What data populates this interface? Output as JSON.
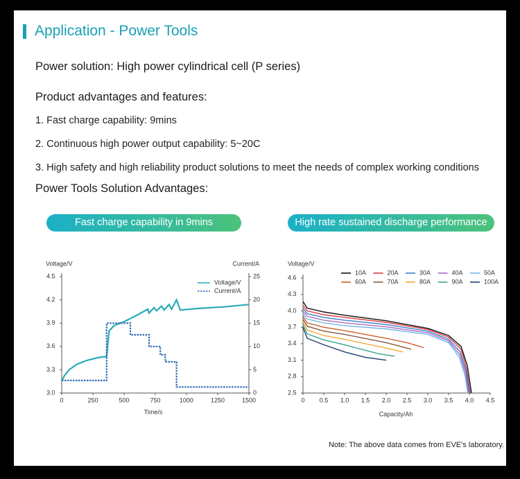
{
  "header": {
    "title": "Application - Power Tools"
  },
  "solution": "Power solution: High power cylindrical cell (P series)",
  "advantages_heading": "Product advantages and features:",
  "advantages": [
    "1. Fast charge capability: 9mins",
    "2. Continuous high power output capability: 5~20C",
    "3. High safety and high reliability product solutions to meet the needs of complex working conditions"
  ],
  "solution_heading": "Power Tools Solution Advantages:",
  "buttons": [
    "Fast charge capability in 9mins",
    "High rate sustained discharge performance"
  ],
  "note": "Note: The above data comes from EVE's laboratory.",
  "chart_data": [
    {
      "type": "line",
      "xlabel": "Time/s",
      "ylabel": "Voltage/V",
      "y2label": "Current/A",
      "xlim": [
        0,
        1500
      ],
      "xticks": [
        0,
        250,
        500,
        750,
        1000,
        1250,
        1500
      ],
      "ylim": [
        3.0,
        4.5
      ],
      "yticks": [
        {
          "value": 3.0,
          "label": "3.0"
        },
        3.3,
        3.6,
        3.9,
        4.2,
        4.5
      ],
      "y2lim": [
        0,
        25
      ],
      "y2ticks": [
        0,
        5,
        10,
        15,
        20,
        25
      ],
      "legend": "upper right",
      "series": [
        {
          "name": "Voltage/V",
          "color": "#2aaab8",
          "style": "solid",
          "x": [
            0,
            20,
            60,
            120,
            200,
            300,
            360,
            365,
            380,
            420,
            500,
            600,
            690,
            700,
            740,
            760,
            800,
            820,
            860,
            880,
            920,
            950,
            1100,
            1300,
            1500
          ],
          "values": [
            3.15,
            3.22,
            3.3,
            3.37,
            3.42,
            3.46,
            3.47,
            3.55,
            3.8,
            3.87,
            3.92,
            4.0,
            4.08,
            4.03,
            4.1,
            4.06,
            4.12,
            4.07,
            4.14,
            4.08,
            4.2,
            4.07,
            4.09,
            4.11,
            4.14
          ]
        },
        {
          "name": "Current/A",
          "color": "#2e6db5",
          "style": "dashed",
          "axis": "y2",
          "x": [
            0,
            360,
            360,
            550,
            550,
            700,
            700,
            790,
            790,
            830,
            830,
            920,
            920,
            1500
          ],
          "values": [
            2.7,
            2.7,
            15,
            15,
            12.5,
            12.5,
            10,
            10,
            8.2,
            8.2,
            6.7,
            6.7,
            1.3,
            1.3
          ]
        }
      ]
    },
    {
      "type": "line",
      "xlabel": "Capacity/Ah",
      "ylabel": "Voltage/V",
      "xlim": [
        0,
        4.5
      ],
      "xticks": [
        0,
        0.5,
        {
          "value": 1.0,
          "label": "1.0"
        },
        1.5,
        {
          "value": 2.0,
          "label": "2.0"
        },
        2.5,
        {
          "value": 3.0,
          "label": "3.0"
        },
        3.5,
        {
          "value": 4.0,
          "label": "4.0"
        },
        4.5
      ],
      "ylim": [
        2.5,
        4.6
      ],
      "yticks": [
        2.5,
        2.8,
        3.1,
        3.4,
        3.7,
        {
          "value": 4.0,
          "label": "4.0"
        },
        4.3,
        4.6
      ],
      "legend": "top",
      "series": [
        {
          "name": "10A",
          "color": "#111111",
          "x": [
            0,
            0.1,
            0.5,
            1.0,
            2.0,
            3.0,
            3.5,
            3.8,
            3.95,
            4.05
          ],
          "values": [
            4.17,
            4.05,
            3.98,
            3.92,
            3.82,
            3.68,
            3.55,
            3.35,
            3.0,
            2.5
          ]
        },
        {
          "name": "20A",
          "color": "#e03a3a",
          "x": [
            0,
            0.1,
            0.5,
            1.0,
            2.0,
            3.0,
            3.5,
            3.8,
            3.93,
            4.02
          ],
          "values": [
            4.1,
            4.0,
            3.93,
            3.88,
            3.79,
            3.66,
            3.52,
            3.3,
            2.95,
            2.5
          ]
        },
        {
          "name": "30A",
          "color": "#3a7cc9",
          "x": [
            0,
            0.1,
            0.5,
            1.0,
            2.0,
            3.0,
            3.5,
            3.78,
            3.92,
            4.0
          ],
          "values": [
            4.05,
            3.95,
            3.88,
            3.83,
            3.75,
            3.63,
            3.48,
            3.25,
            2.9,
            2.5
          ]
        },
        {
          "name": "40A",
          "color": "#a86bc4",
          "x": [
            0,
            0.1,
            0.5,
            1.0,
            2.0,
            3.0,
            3.5,
            3.77,
            3.91,
            3.98
          ],
          "values": [
            4.0,
            3.9,
            3.83,
            3.78,
            3.71,
            3.6,
            3.45,
            3.2,
            2.85,
            2.5
          ]
        },
        {
          "name": "50A",
          "color": "#6fb8e6",
          "x": [
            0,
            0.1,
            0.5,
            1.0,
            2.0,
            3.0,
            3.5,
            3.76,
            3.9,
            3.96
          ],
          "values": [
            3.95,
            3.85,
            3.78,
            3.73,
            3.67,
            3.57,
            3.42,
            3.15,
            2.8,
            2.5
          ]
        },
        {
          "name": "60A",
          "color": "#c9602a",
          "x": [
            0,
            0.1,
            0.5,
            1.0,
            2.0,
            2.5,
            2.9
          ],
          "values": [
            3.9,
            3.78,
            3.7,
            3.64,
            3.5,
            3.42,
            3.33
          ]
        },
        {
          "name": "70A",
          "color": "#8a5a3c",
          "x": [
            0,
            0.1,
            0.5,
            1.0,
            2.0,
            2.6
          ],
          "values": [
            3.85,
            3.72,
            3.63,
            3.57,
            3.42,
            3.3
          ]
        },
        {
          "name": "80A",
          "color": "#f2a933",
          "x": [
            0,
            0.1,
            0.5,
            1.0,
            2.0,
            2.4
          ],
          "values": [
            3.8,
            3.65,
            3.55,
            3.48,
            3.32,
            3.25
          ]
        },
        {
          "name": "90A",
          "color": "#3aa68a",
          "x": [
            0,
            0.1,
            0.5,
            1.0,
            1.8,
            2.2
          ],
          "values": [
            3.75,
            3.58,
            3.47,
            3.38,
            3.22,
            3.17
          ]
        },
        {
          "name": "100A",
          "color": "#1f3b73",
          "x": [
            0,
            0.1,
            0.5,
            1.0,
            1.5,
            2.0
          ],
          "values": [
            3.7,
            3.5,
            3.38,
            3.25,
            3.15,
            3.1
          ]
        }
      ]
    }
  ]
}
